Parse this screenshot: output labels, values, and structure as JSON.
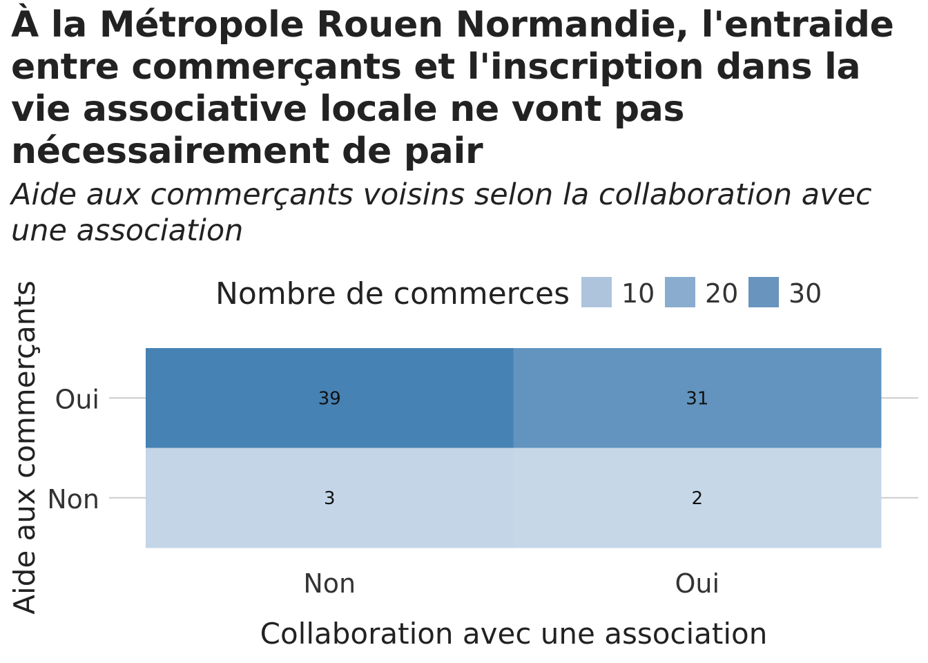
{
  "title": "À la Métropole Rouen Normandie, l'entraide entre commerçants et l'inscription dans la vie associative locale ne vont pas nécessairement de pair",
  "subtitle": "Aide aux commerçants voisins selon la collaboration avec une association",
  "chart_data": {
    "type": "heatmap",
    "xlabel": "Collaboration avec une association",
    "ylabel": "Aide aux commerçants",
    "x_categories": [
      "Non",
      "Oui"
    ],
    "y_categories": [
      "Oui",
      "Non"
    ],
    "cells": [
      {
        "x": "Non",
        "y": "Oui",
        "value": 39
      },
      {
        "x": "Oui",
        "y": "Oui",
        "value": 31
      },
      {
        "x": "Non",
        "y": "Non",
        "value": 3
      },
      {
        "x": "Oui",
        "y": "Non",
        "value": 2
      }
    ],
    "legend": {
      "title": "Nombre de commerces",
      "placement": "top",
      "entries": [
        10,
        20,
        30
      ],
      "entry_colors": [
        "#aec4dd",
        "#8aaccf",
        "#6894be"
      ]
    },
    "color_scale": {
      "low_color": "#c6d7e8",
      "high_color": "#4682b4",
      "domain": [
        2,
        39
      ]
    },
    "grid": true
  }
}
